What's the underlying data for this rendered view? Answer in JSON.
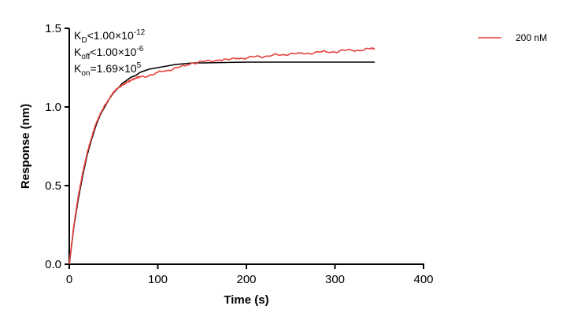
{
  "chart_data": {
    "type": "line",
    "xlabel": "Time (s)",
    "ylabel": "Response (nm)",
    "xlim": [
      0,
      400
    ],
    "ylim": [
      0,
      1.5
    ],
    "xticks": [
      0,
      100,
      200,
      300,
      400
    ],
    "yticks": [
      0.0,
      0.5,
      1.0,
      1.5
    ],
    "xtick_labels": [
      "0",
      "100",
      "200",
      "300",
      "400"
    ],
    "ytick_labels": [
      "0.0",
      "0.5",
      "1.0",
      "1.5"
    ],
    "grid": false,
    "legend_position": "top-right",
    "annotations": {
      "kd": {
        "base": "K",
        "sub": "D",
        "mid": "<1.00×10",
        "sup": "-12"
      },
      "koff": {
        "base": "K",
        "sub": "off",
        "mid": "<1.00×10",
        "sup": "-6"
      },
      "kon": {
        "base": "K",
        "sub": "on",
        "mid": "=1.69×10",
        "sup": "5"
      }
    },
    "series": [
      {
        "name": "200 nM",
        "color": "#e8413c",
        "x": [
          0,
          5,
          10,
          15,
          20,
          25,
          30,
          35,
          40,
          45,
          50,
          55,
          60,
          65,
          70,
          75,
          80,
          90,
          100,
          110,
          120,
          130,
          140,
          150,
          160,
          170,
          180,
          190,
          200,
          210,
          220,
          230,
          240,
          250,
          260,
          270,
          280,
          290,
          300,
          310,
          320,
          330,
          340,
          345
        ],
        "y": [
          0.0,
          0.24,
          0.43,
          0.58,
          0.7,
          0.8,
          0.89,
          0.96,
          1.01,
          1.05,
          1.09,
          1.12,
          1.14,
          1.16,
          1.17,
          1.18,
          1.19,
          1.2,
          1.22,
          1.23,
          1.25,
          1.26,
          1.28,
          1.29,
          1.29,
          1.3,
          1.3,
          1.31,
          1.31,
          1.32,
          1.32,
          1.33,
          1.33,
          1.34,
          1.34,
          1.34,
          1.35,
          1.35,
          1.35,
          1.36,
          1.36,
          1.36,
          1.37,
          1.37
        ]
      }
    ],
    "fit": {
      "color": "#000000",
      "x": [
        0,
        5,
        10,
        15,
        20,
        25,
        30,
        35,
        40,
        45,
        50,
        55,
        60,
        65,
        70,
        75,
        80,
        90,
        100,
        110,
        120,
        130,
        140,
        150,
        200,
        250,
        300,
        345
      ],
      "y": [
        0.0,
        0.23,
        0.41,
        0.56,
        0.69,
        0.79,
        0.88,
        0.95,
        1.0,
        1.05,
        1.09,
        1.12,
        1.15,
        1.17,
        1.19,
        1.2,
        1.22,
        1.24,
        1.25,
        1.26,
        1.27,
        1.275,
        1.28,
        1.28,
        1.285,
        1.285,
        1.285,
        1.285
      ]
    }
  }
}
